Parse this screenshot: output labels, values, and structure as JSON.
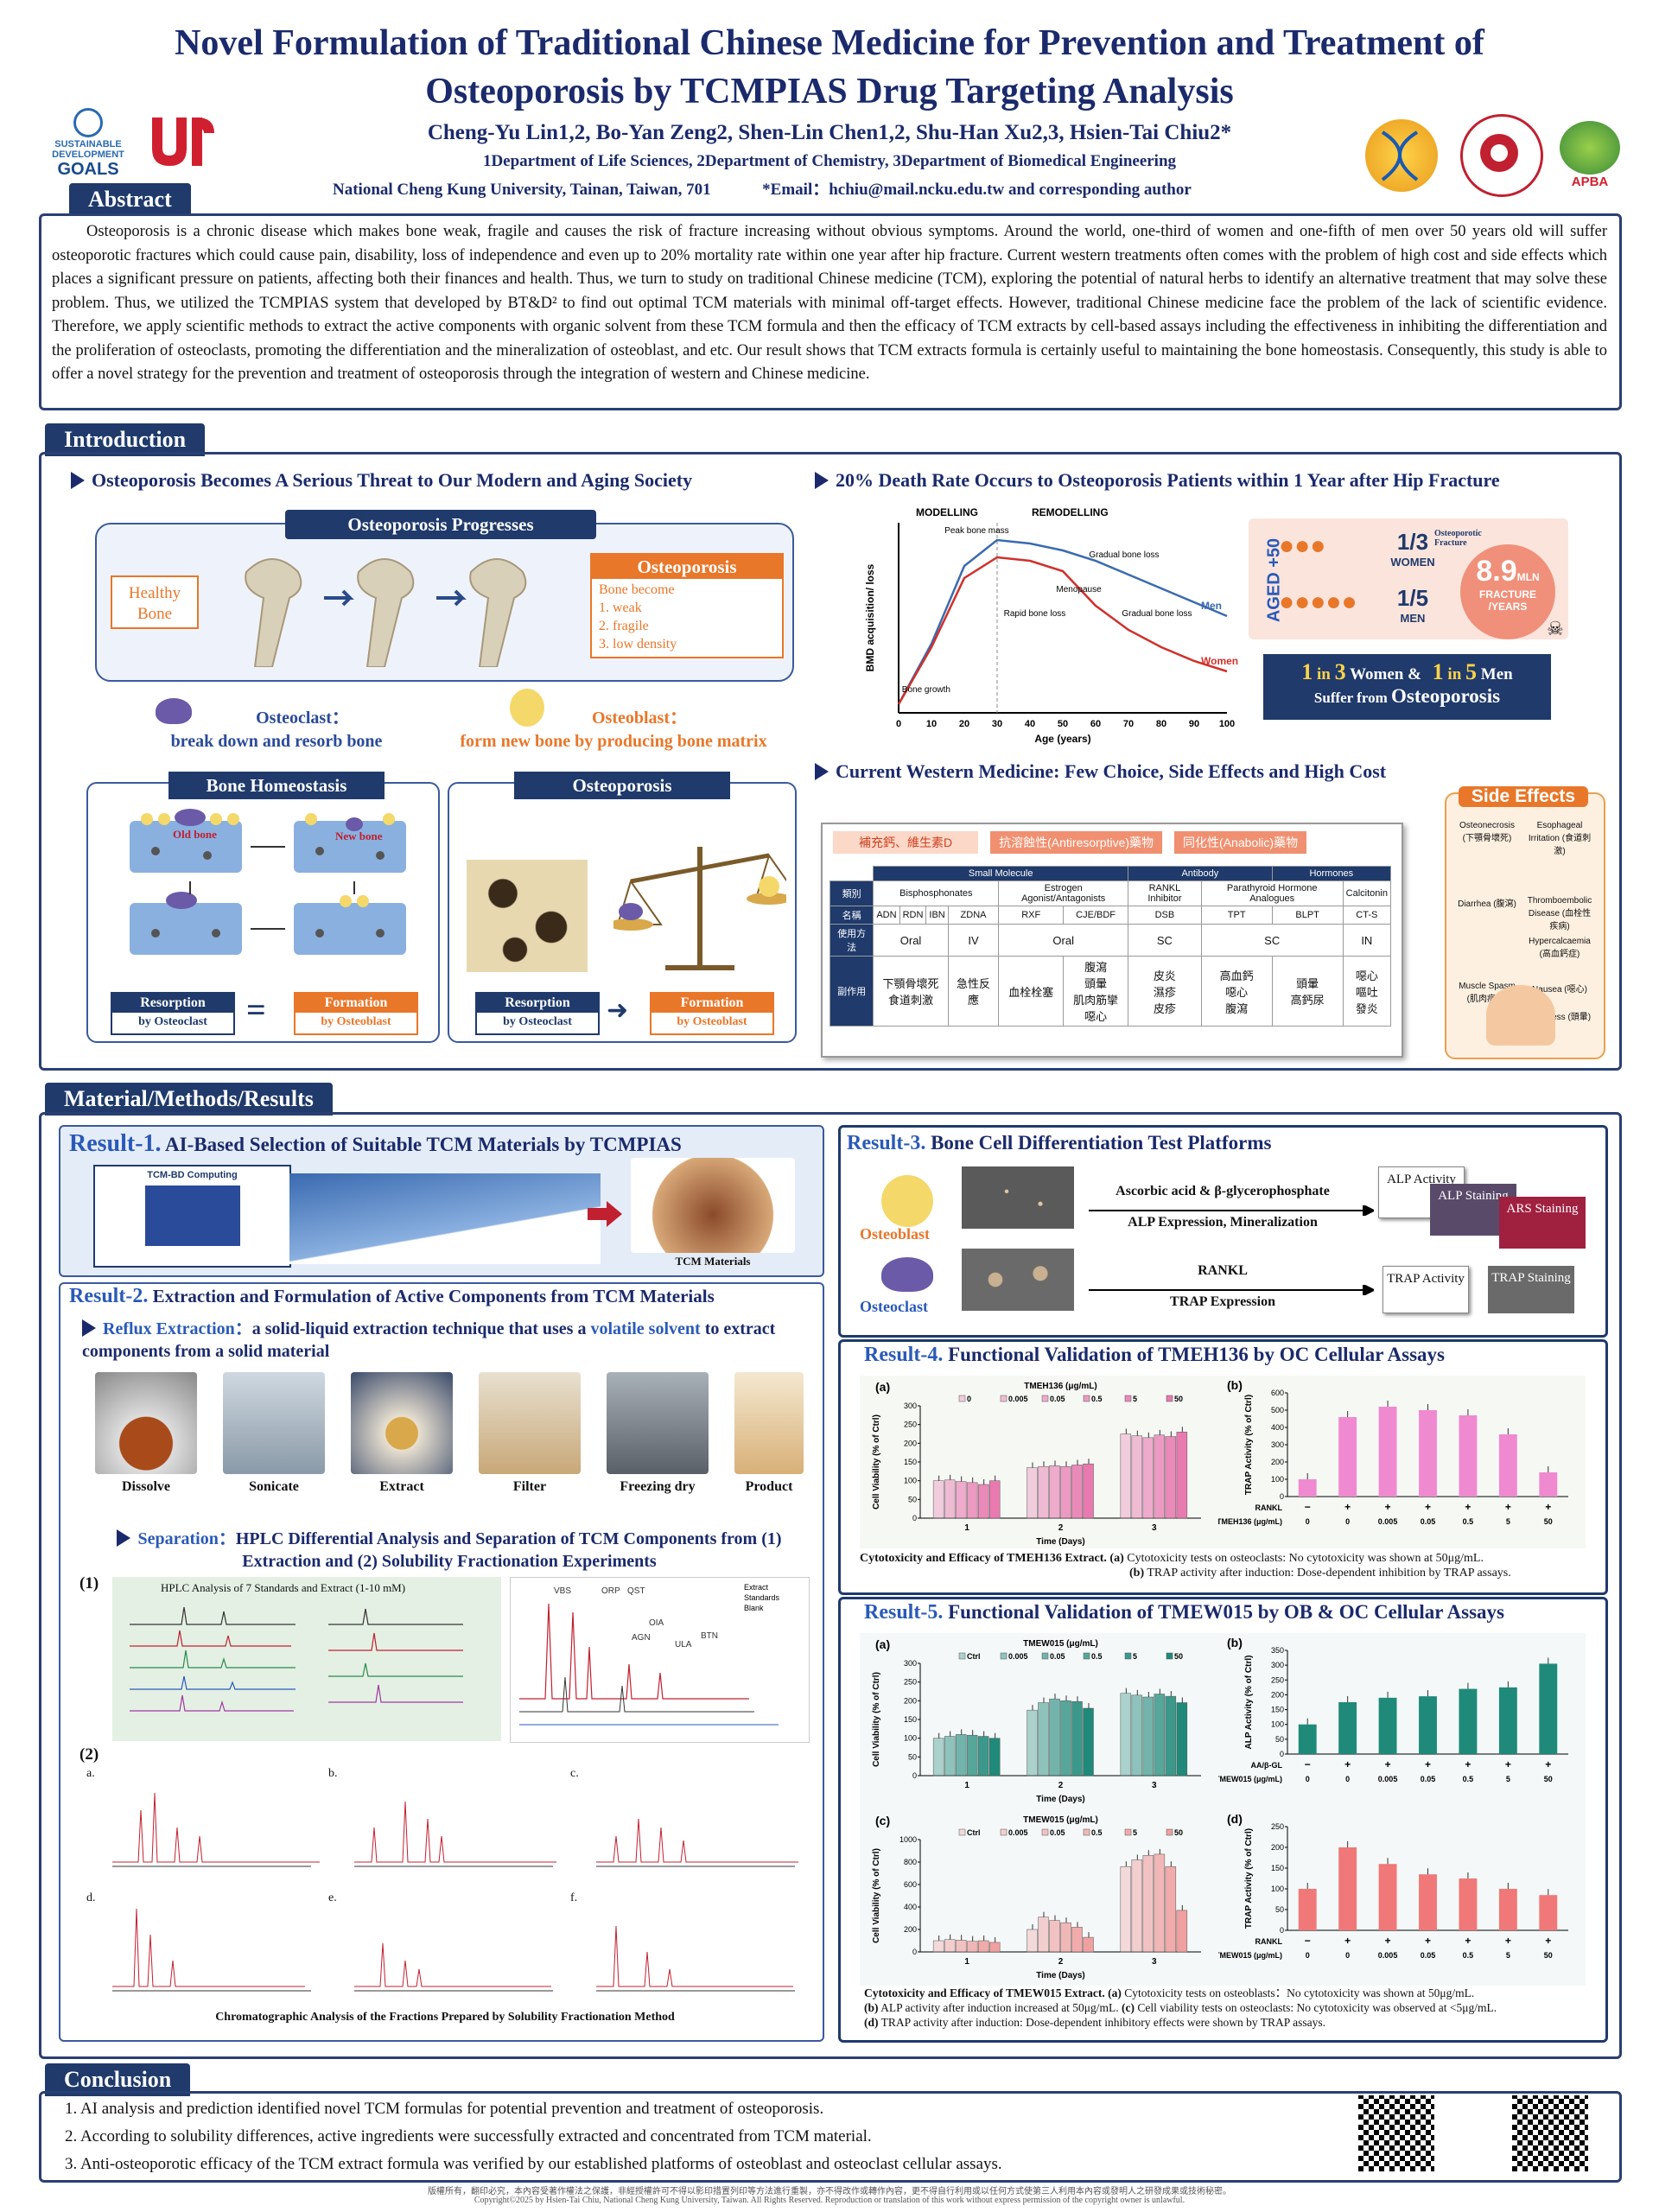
{
  "header": {
    "title": "Novel Formulation of Traditional Chinese Medicine for Prevention and Treatment of Osteoporosis by TCMPIAS Drug Targeting Analysis",
    "authors": "Cheng-Yu Lin1,2, Bo-Yan Zeng2, Shen-Lin Chen1,2, Shu-Han Xu2,3, Hsien-Tai Chiu2*",
    "departments": "1Department of Life Sciences, 2Department of Chemistry, 3Department of Biomedical Engineering",
    "affiliation": "National Cheng Kung University, Tainan, Taiwan, 701",
    "email": "*Email：hchiu@mail.ncku.edu.tw and corresponding author",
    "logo_sdg_1": "SUSTAINABLE",
    "logo_sdg_2": "DEVELOPMENT",
    "logo_sdg_3": "GOALS",
    "logo_apba": "APBA"
  },
  "abstract": {
    "tab": "Abstract",
    "text": "Osteoporosis is a chronic disease which makes bone weak, fragile and causes the risk of fracture increasing without obvious symptoms. Around the world, one-third of women and one-fifth of men over 50 years old will suffer osteoporotic fractures which could cause pain, disability, loss of independence and even up to 20% mortality rate within one year after hip fracture. Current western treatments often comes with the problem of high cost and side effects which places a significant pressure on patients, affecting both their finances and health. Thus, we turn to study on traditional Chinese medicine (TCM), exploring the potential of natural herbs to identify an alternative treatment that may solve these problem. Thus, we utilized the TCMPIAS system that developed by BT&D² to find out optimal TCM materials with minimal off-target effects. However, traditional Chinese medicine face the problem of the lack of scientific evidence. Therefore, we apply scientific methods to extract the active components with organic solvent from these TCM formula and then the efficacy of TCM extracts by cell-based assays including the effectiveness in inhibiting the differentiation and the proliferation of osteoclasts, promoting the differentiation and the mineralization of osteoblast, and etc. Our result shows that TCM extracts formula is certainly useful to maintaining the bone homeostasis. Consequently, this study is able to offer a novel strategy for the prevention and treatment of osteoporosis through the integration of western and Chinese medicine."
  },
  "intro": {
    "tab": "Introduction",
    "h1": "Osteoporosis Becomes A Serious Threat to Our Modern and Aging Society",
    "h2": "20% Death Rate Occurs to Osteoporosis Patients within 1 Year after Hip Fracture",
    "h3": "Current Western Medicine: Few Choice, Side Effects and High Cost",
    "progress_title": "Osteoporosis Progresses",
    "healthy_bone": "Healthy Bone",
    "osteo_box_title": "Osteoporosis",
    "osteo_box_sub": "Bone become",
    "osteo_items": [
      "1.   weak",
      "2.   fragile",
      "3.   low density"
    ],
    "osteoclast_label": "Osteoclast：",
    "osteoclast_desc": "break down and resorb bone",
    "osteoblast_label": "Osteoblast：",
    "osteoblast_desc": "form new bone by producing bone matrix",
    "homeostasis_title": "Bone Homeostasis",
    "osteoporosis_title": "Osteoporosis",
    "old_bone": "Old bone",
    "new_bone": "New bone",
    "bone": "Bone",
    "resorption": "Resorption",
    "by_osteoclast": "by Osteoclast",
    "formation": "Formation",
    "by_osteoblast": "by Osteoblast",
    "eq": "=",
    "arrow_right": "➜",
    "aged": "AGED +50",
    "women_frac": "1/3",
    "women": "WOMEN",
    "men_frac": "1/5",
    "men": "MEN",
    "osteo_fracture": "Osteoporotic Fracture",
    "fracture_num": "8.9",
    "fracture_mln": "MLN",
    "fracture_label": "FRACTURE /YEARS",
    "stat_line1_a": "1",
    "stat_line1_b": "in",
    "stat_line1_c": "3",
    "stat_line1_d": "Women   &",
    "stat_line1_e": "1",
    "stat_line1_f": "in",
    "stat_line1_g": "5",
    "stat_line1_h": "Men",
    "stat_line2_a": "Suffer from",
    "stat_line2_b": "Osteoporosis",
    "side_effects_title": "Side Effects",
    "side_effects": [
      "Osteonecrosis (下顎骨壞死)",
      "Esophageal Irritation (食道刺激)",
      "Diarrhea (腹瀉)",
      "Thromboembolic Disease (血栓性疾病)",
      "Hypercalcaemia (高血鈣症)",
      "Muscle Spasm (肌肉痙攣)",
      "Nausea (噁心)",
      "Dizziness (頭暈)"
    ],
    "drug_tags": [
      "補充鈣、維生素D",
      "抗溶蝕性(Antiresorptive)藥物",
      "同化性(Anabolic)藥物"
    ],
    "drug_table": {
      "row_groups": [
        "Small Molecule",
        "Antibody",
        "Hormones"
      ],
      "classes": [
        "Bisphosphonates",
        "Estrogen Agonist/Antagonists",
        "RANKL Inhibitor",
        "Parathyroid Hormone Analogues",
        "Calcitonin"
      ],
      "row_labels": [
        "類別",
        "名稱",
        "使用方法",
        "副作用"
      ],
      "names": [
        "ADN",
        "RDN",
        "IBN",
        "ZDNA",
        "RXF",
        "CJE/BDF",
        "DSB",
        "TPT",
        "BLPT",
        "CT-S"
      ],
      "methods": [
        "Oral",
        "IV",
        "Oral",
        "SC",
        "SC",
        "IN"
      ],
      "effects": [
        "下顎骨壞死\n食道刺激",
        "急性反應",
        "血栓栓塞",
        "腹瀉\n頭暈\n肌肉筋攣\n噁心",
        "皮炎\n濕疹\n皮疹",
        "高血鈣\n噁心\n腹瀉",
        "頭暈\n高鈣尿",
        "噁心\n嘔吐\n發炎"
      ]
    }
  },
  "bmd_chart": {
    "chart_data": {
      "type": "line",
      "title": "",
      "xlabel": "Age (years)",
      "ylabel": "BMD acquisition/ loss",
      "x": [
        0,
        10,
        20,
        30,
        40,
        50,
        60,
        70,
        80,
        90,
        100
      ],
      "xlim": [
        0,
        100
      ],
      "phases": [
        "MODELLING",
        "REMODELLING"
      ],
      "annotations": [
        "Peak bone mass",
        "Gradual bone loss",
        "Menopause",
        "Rapid bone loss",
        "Gradual bone loss",
        "Bone growth"
      ],
      "series": [
        {
          "name": "Men",
          "color": "#3a6ab0",
          "values": [
            5,
            40,
            85,
            100,
            98,
            94,
            88,
            80,
            72,
            64,
            56
          ]
        },
        {
          "name": "Women",
          "color": "#d0302a",
          "values": [
            5,
            38,
            78,
            90,
            88,
            82,
            62,
            48,
            38,
            30,
            24
          ]
        }
      ]
    }
  },
  "methods": {
    "tab": "Material/Methods/Results",
    "r1_num": "Result-1.",
    "r1_title": "AI-Based Selection of Suitable TCM Materials by TCMPIAS",
    "r1_label": "TCM Materials",
    "r1_cbd": "TCM-BD Computing",
    "r2_num": "Result-2.",
    "r2_title": "Extraction and Formulation of Active Components from TCM Materials",
    "reflux_a": "Reflux Extraction：",
    "reflux_b": "a solid-liquid extraction technique that uses a",
    "reflux_c": "volatile solvent",
    "reflux_d": "to extract components from a solid material",
    "steps": [
      "Dissolve",
      "Sonicate",
      "Extract",
      "Filter",
      "Freezing dry",
      "Product"
    ],
    "sep_a": "Separation：",
    "sep_b": "HPLC Differential Analysis and Separation of TCM Components from (1) Extraction and (2) Solubility Fractionation Experiments",
    "hplc_1": "(1)",
    "hplc_title": "HPLC Analysis of 7 Standards and Extract (1-10 mM)",
    "hplc_peaks": [
      "VBS",
      "ORP",
      "QST",
      "OIA",
      "AGN",
      "ULA",
      "BTN"
    ],
    "hplc_legend": [
      "Extract",
      "Standards",
      "Blank"
    ],
    "hplc_2": "(2)",
    "fraction_letters": [
      "a.",
      "b.",
      "c.",
      "d.",
      "e.",
      "f."
    ],
    "fraction_caption": "Chromatographic Analysis of the Fractions Prepared by Solubility Fractionation Method",
    "r3_num": "Result-3.",
    "r3_title": "Bone Cell Differentiation Test Platforms",
    "osteoblast": "Osteoblast",
    "osteoclast": "Osteoclast",
    "ob_reagent": "Ascorbic acid & β-glycerophosphate",
    "ob_assay": "ALP Expression, Mineralization",
    "oc_reagent": "RANKL",
    "oc_assay": "TRAP Expression",
    "alp_activity": "ALP Activity",
    "alp_staining": "ALP Staining",
    "ars_staining": "ARS Staining",
    "trap_activity": "TRAP Activity",
    "trap_staining": "TRAP Staining",
    "r4_num": "Result-4.",
    "r4_title": "Functional Validation of TMEH136 by OC Cellular Assays",
    "r4_cap_bold": "Cytotoxicity and Efficacy of TMEH136 Extract. (a)",
    "r4_cap_a": "Cytotoxicity tests on osteoclasts: No cytotoxicity was shown at 50μg/mL.",
    "r4_cap_b_bold": "(b)",
    "r4_cap_b": "TRAP activity after induction: Dose-dependent inhibition by TRAP assays.",
    "r5_num": "Result-5.",
    "r5_title": "Functional Validation of TMEW015 by OB & OC Cellular Assays",
    "r5_cap_bold": "Cytotoxicity and Efficacy of TMEW015 Extract. (a)",
    "r5_cap_a": "Cytotoxicity tests on osteoblasts：No cytotoxicity was shown at 50μg/mL.",
    "r5_cap_b_bold": "(b)",
    "r5_cap_b": "ALP activity after induction increased at 50μg/mL.",
    "r5_cap_c_bold": "(c)",
    "r5_cap_c": "Cell viability tests on osteoclasts: No cytotoxicity was observed at <5μg/mL.",
    "r5_cap_d_bold": "(d)",
    "r5_cap_d": "TRAP activity after induction: Dose-dependent inhibitory effects were shown by TRAP assays."
  },
  "chart_data": [
    {
      "id": "r4a",
      "type": "bar",
      "panel": "(a)",
      "title": "TMEH136 (μg/mL)",
      "xlabel": "Time (Days)",
      "ylabel": "Cell Viability (% of Ctrl)",
      "categories": [
        "1",
        "2",
        "3"
      ],
      "ylim": [
        0,
        300
      ],
      "yticks": [
        0,
        50,
        100,
        150,
        200,
        250,
        300
      ],
      "color": "#e87ab0",
      "series": [
        {
          "name": "0",
          "values": [
            100,
            135,
            225
          ]
        },
        {
          "name": "0.005",
          "values": [
            102,
            138,
            220
          ]
        },
        {
          "name": "0.05",
          "values": [
            98,
            140,
            215
          ]
        },
        {
          "name": "0.5",
          "values": [
            95,
            138,
            222
          ]
        },
        {
          "name": "5",
          "values": [
            90,
            142,
            218
          ]
        },
        {
          "name": "50",
          "values": [
            100,
            145,
            230
          ]
        }
      ]
    },
    {
      "id": "r4b",
      "type": "bar",
      "panel": "(b)",
      "ylabel": "TRAP Activity (% of Ctrl)",
      "ylim": [
        0,
        600
      ],
      "yticks": [
        0,
        100,
        200,
        300,
        400,
        500,
        600
      ],
      "color": "#f08ad0",
      "categories": [
        "0",
        "0",
        "0.005",
        "0.05",
        "0.5",
        "5",
        "50"
      ],
      "row1_label": "RANKL",
      "row1": [
        "−",
        "+",
        "+",
        "+",
        "+",
        "+",
        "+"
      ],
      "row2_label": "TMEH136 (μg/mL)",
      "values": [
        100,
        460,
        520,
        500,
        470,
        360,
        140
      ]
    },
    {
      "id": "r5a",
      "type": "bar",
      "panel": "(a)",
      "title": "TMEW015 (μg/mL)",
      "xlabel": "Time (Days)",
      "ylabel": "Cell Viability (% of Ctrl)",
      "categories": [
        "1",
        "2",
        "3"
      ],
      "ylim": [
        0,
        300
      ],
      "yticks": [
        0,
        50,
        100,
        150,
        200,
        250,
        300
      ],
      "color": "#1f8a7a",
      "series": [
        {
          "name": "Ctrl",
          "values": [
            100,
            175,
            220
          ]
        },
        {
          "name": "0.005",
          "values": [
            105,
            195,
            215
          ]
        },
        {
          "name": "0.05",
          "values": [
            110,
            205,
            210
          ]
        },
        {
          "name": "0.5",
          "values": [
            108,
            200,
            218
          ]
        },
        {
          "name": "5",
          "values": [
            105,
            198,
            212
          ]
        },
        {
          "name": "50",
          "values": [
            100,
            180,
            195
          ]
        }
      ]
    },
    {
      "id": "r5b",
      "type": "bar",
      "panel": "(b)",
      "ylabel": "ALP Activity (% of Ctrl)",
      "ylim": [
        0,
        350
      ],
      "yticks": [
        0,
        50,
        100,
        150,
        200,
        250,
        300,
        350
      ],
      "color": "#1f8a7a",
      "categories": [
        "0",
        "0",
        "0.005",
        "0.05",
        "0.5",
        "5",
        "50"
      ],
      "row1_label": "AA/β-GL",
      "row1": [
        "−",
        "+",
        "+",
        "+",
        "+",
        "+",
        "+"
      ],
      "row2_label": "TMEW015 (μg/mL)",
      "values": [
        100,
        175,
        190,
        195,
        220,
        225,
        305
      ]
    },
    {
      "id": "r5c",
      "type": "bar",
      "panel": "(c)",
      "title": "TMEW015 (μg/mL)",
      "xlabel": "Time (Days)",
      "ylabel": "Cell Viability (% of Ctrl)",
      "categories": [
        "1",
        "2",
        "3"
      ],
      "ylim": [
        0,
        1000
      ],
      "yticks": [
        0,
        200,
        400,
        600,
        800,
        1000
      ],
      "color": "#f0a0a0",
      "series": [
        {
          "name": "Ctrl",
          "values": [
            100,
            200,
            760
          ]
        },
        {
          "name": "0.005",
          "values": [
            110,
            310,
            820
          ]
        },
        {
          "name": "0.05",
          "values": [
            105,
            280,
            860
          ]
        },
        {
          "name": "0.5",
          "values": [
            95,
            260,
            870
          ]
        },
        {
          "name": "5",
          "values": [
            100,
            220,
            760
          ]
        },
        {
          "name": "50",
          "values": [
            85,
            130,
            370
          ]
        }
      ]
    },
    {
      "id": "r5d",
      "type": "bar",
      "panel": "(d)",
      "ylabel": "TRAP Activity (% of Ctrl)",
      "ylim": [
        0,
        250
      ],
      "yticks": [
        0,
        50,
        100,
        150,
        200,
        250
      ],
      "color": "#f07878",
      "categories": [
        "0",
        "0",
        "0.005",
        "0.05",
        "0.5",
        "5",
        "50"
      ],
      "row1_label": "RANKL",
      "row1": [
        "−",
        "+",
        "+",
        "+",
        "+",
        "+",
        "+"
      ],
      "row2_label": "TMEW015 (μg/mL)",
      "values": [
        100,
        200,
        160,
        135,
        125,
        100,
        85
      ]
    }
  ],
  "conclusion": {
    "tab": "Conclusion",
    "items": [
      "1.   AI analysis and prediction identified novel TCM formulas for potential prevention and treatment of osteoporosis.",
      "2.   According to solubility differences, active ingredients were successfully extracted and concentrated from TCM material.",
      "3.   Anti-osteoporotic efficacy of the TCM extract formula was verified by our established platforms of osteoblast and  osteoclast cellular assays."
    ]
  },
  "footer": {
    "line1": "版權所有，翻印必究，本內容受著作權法之保護，非經授權許可不得以影印措置列印等方法進行重製，亦不得改作或轉作內容，更不得自行利用或以任何方式使第三人利用本內容或發明人之研發成果或技術秘密。",
    "line2": "Copyright©2025 by Hsien-Tai Chiu, National Cheng Kung University, Taiwan. All Rights Reserved. Reproduction or translation of this work without express permission of the copyright owner is unlawful."
  }
}
